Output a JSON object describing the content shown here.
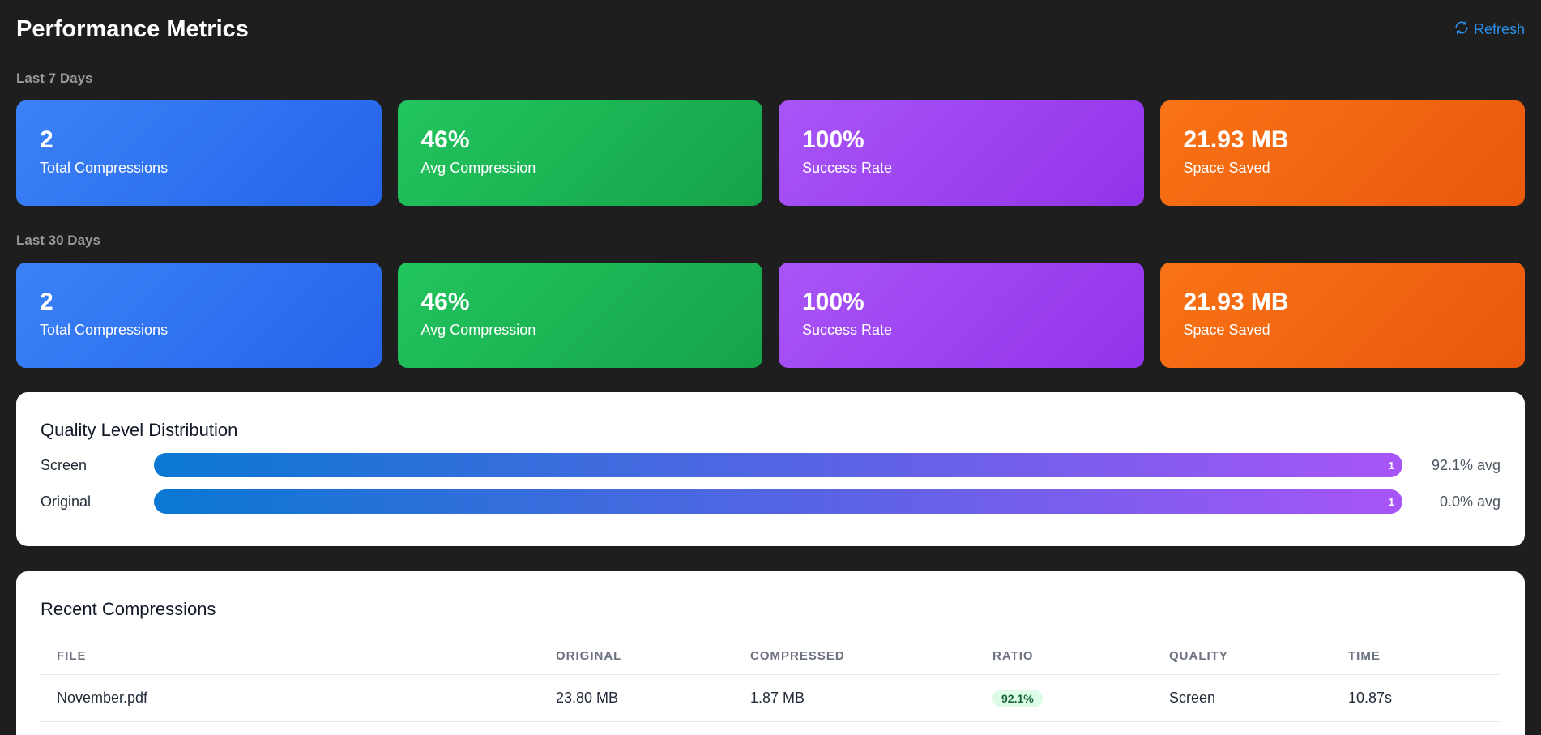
{
  "header": {
    "title": "Performance Metrics",
    "refresh_label": "Refresh"
  },
  "periods": [
    {
      "label": "Last 7 Days",
      "cards": [
        {
          "value": "2",
          "label": "Total Compressions",
          "color": "#3b82f6"
        },
        {
          "value": "46%",
          "label": "Avg Compression",
          "color": "#22c55e"
        },
        {
          "value": "100%",
          "label": "Success Rate",
          "color": "#a855f7"
        },
        {
          "value": "21.93 MB",
          "label": "Space Saved",
          "color": "#f97316"
        }
      ]
    },
    {
      "label": "Last 30 Days",
      "cards": [
        {
          "value": "2",
          "label": "Total Compressions",
          "color": "#3b82f6"
        },
        {
          "value": "46%",
          "label": "Avg Compression",
          "color": "#22c55e"
        },
        {
          "value": "100%",
          "label": "Success Rate",
          "color": "#a855f7"
        },
        {
          "value": "21.93 MB",
          "label": "Space Saved",
          "color": "#f97316"
        }
      ]
    }
  ],
  "distribution": {
    "title": "Quality Level Distribution",
    "rows": [
      {
        "name": "Screen",
        "count": "1",
        "fill_fraction": 1.0,
        "avg": "92.1% avg"
      },
      {
        "name": "Original",
        "count": "1",
        "fill_fraction": 1.0,
        "avg": "0.0% avg"
      }
    ]
  },
  "recent": {
    "title": "Recent Compressions",
    "columns": [
      "FILE",
      "ORIGINAL",
      "COMPRESSED",
      "RATIO",
      "QUALITY",
      "TIME"
    ],
    "rows": [
      {
        "file": "November.pdf",
        "original": "23.80 MB",
        "compressed": "1.87 MB",
        "ratio": "92.1%",
        "quality": "Screen",
        "time": "10.87s"
      }
    ]
  },
  "colors": {
    "background": "#1e1e1f",
    "accent": "#2b8fe6",
    "badge_bg": "#dcfce7"
  }
}
